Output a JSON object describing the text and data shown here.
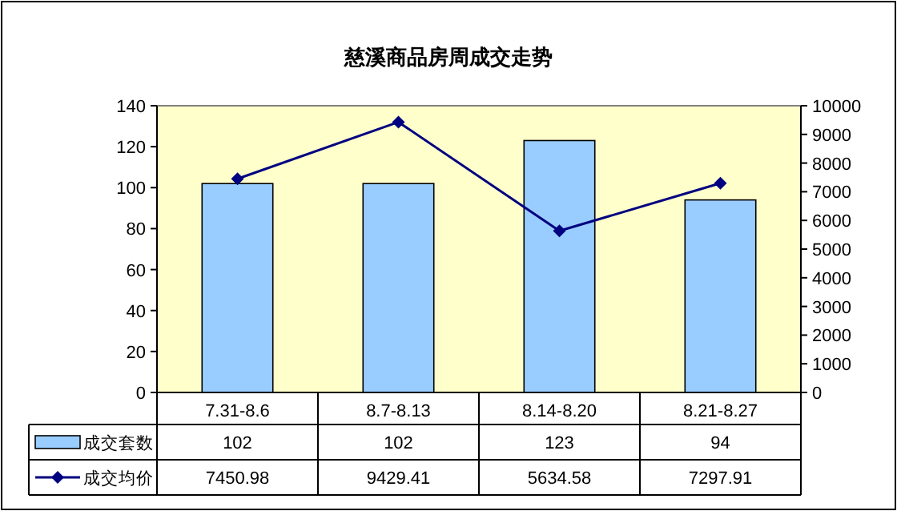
{
  "chart_data": {
    "type": "bar",
    "title": "慈溪商品房周成交走势",
    "categories": [
      "7.31-8.6",
      "8.7-8.13",
      "8.14-8.20",
      "8.21-8.27"
    ],
    "series": [
      {
        "name": "成交套数",
        "color": "#99ccff",
        "values": [
          102,
          102,
          123,
          94
        ]
      },
      {
        "name": "成交均价",
        "type": "line",
        "axis": "y2",
        "color": "#000080",
        "marker": "diamond",
        "values": [
          7450.98,
          9429.41,
          5634.58,
          7297.91
        ]
      }
    ],
    "ylim": [
      0,
      140
    ],
    "yticks": [
      0,
      20,
      40,
      60,
      80,
      100,
      120,
      140
    ],
    "y2lim": [
      0,
      10000
    ],
    "y2ticks": [
      0,
      1000,
      2000,
      3000,
      4000,
      5000,
      6000,
      7000,
      8000,
      9000,
      10000
    ],
    "data_labels": true,
    "legend": "bottom",
    "grid": false
  }
}
